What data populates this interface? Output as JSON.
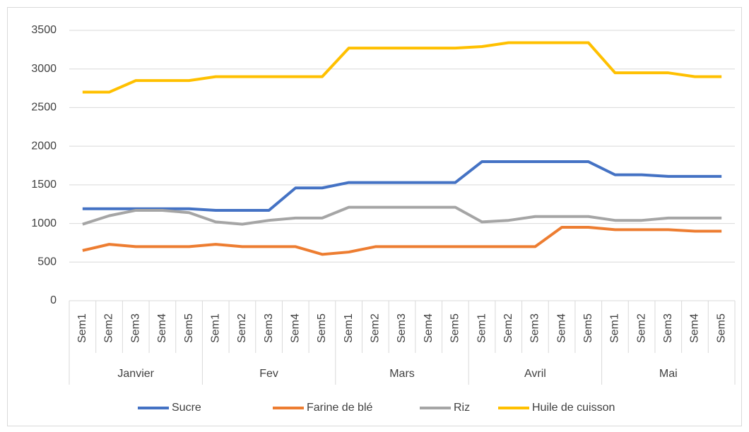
{
  "chart_data": {
    "type": "line",
    "categories": [
      "Sem1",
      "Sem2",
      "Sem3",
      "Sem4",
      "Sem5",
      "Sem1",
      "Sem2",
      "Sem3",
      "Sem4",
      "Sem5",
      "Sem1",
      "Sem2",
      "Sem3",
      "Sem4",
      "Sem5",
      "Sem1",
      "Sem2",
      "Sem3",
      "Sem4",
      "Sem5",
      "Sem1",
      "Sem2",
      "Sem3",
      "Sem4",
      "Sem5"
    ],
    "groups": [
      "Janvier",
      "Fev",
      "Mars",
      "Avril",
      "Mai"
    ],
    "series": [
      {
        "name": "Sucre",
        "color": "#4472c4",
        "values": [
          1190,
          1190,
          1190,
          1190,
          1190,
          1170,
          1170,
          1170,
          1460,
          1460,
          1530,
          1530,
          1530,
          1530,
          1530,
          1800,
          1800,
          1800,
          1800,
          1800,
          1630,
          1630,
          1610,
          1610,
          1610
        ]
      },
      {
        "name": "Farine de blé",
        "color": "#ed7d31",
        "values": [
          650,
          730,
          700,
          700,
          700,
          730,
          700,
          700,
          700,
          600,
          630,
          700,
          700,
          700,
          700,
          700,
          700,
          700,
          950,
          950,
          920,
          920,
          920,
          900,
          900
        ]
      },
      {
        "name": "Riz",
        "color": "#a5a5a5",
        "values": [
          990,
          1100,
          1170,
          1170,
          1140,
          1020,
          990,
          1040,
          1070,
          1070,
          1210,
          1210,
          1210,
          1210,
          1210,
          1020,
          1040,
          1090,
          1090,
          1090,
          1040,
          1040,
          1070,
          1070,
          1070
        ]
      },
      {
        "name": "Huile de cuisson",
        "color": "#ffc000",
        "values": [
          2700,
          2700,
          2850,
          2850,
          2850,
          2900,
          2900,
          2900,
          2900,
          2900,
          3270,
          3270,
          3270,
          3270,
          3270,
          3290,
          3340,
          3340,
          3340,
          3340,
          2950,
          2950,
          2950,
          2900,
          2900
        ]
      }
    ],
    "ylim": [
      0,
      3500
    ],
    "yticks": [
      0,
      500,
      1000,
      1500,
      2000,
      2500,
      3000,
      3500
    ],
    "grid": true,
    "legend": "bottom"
  }
}
